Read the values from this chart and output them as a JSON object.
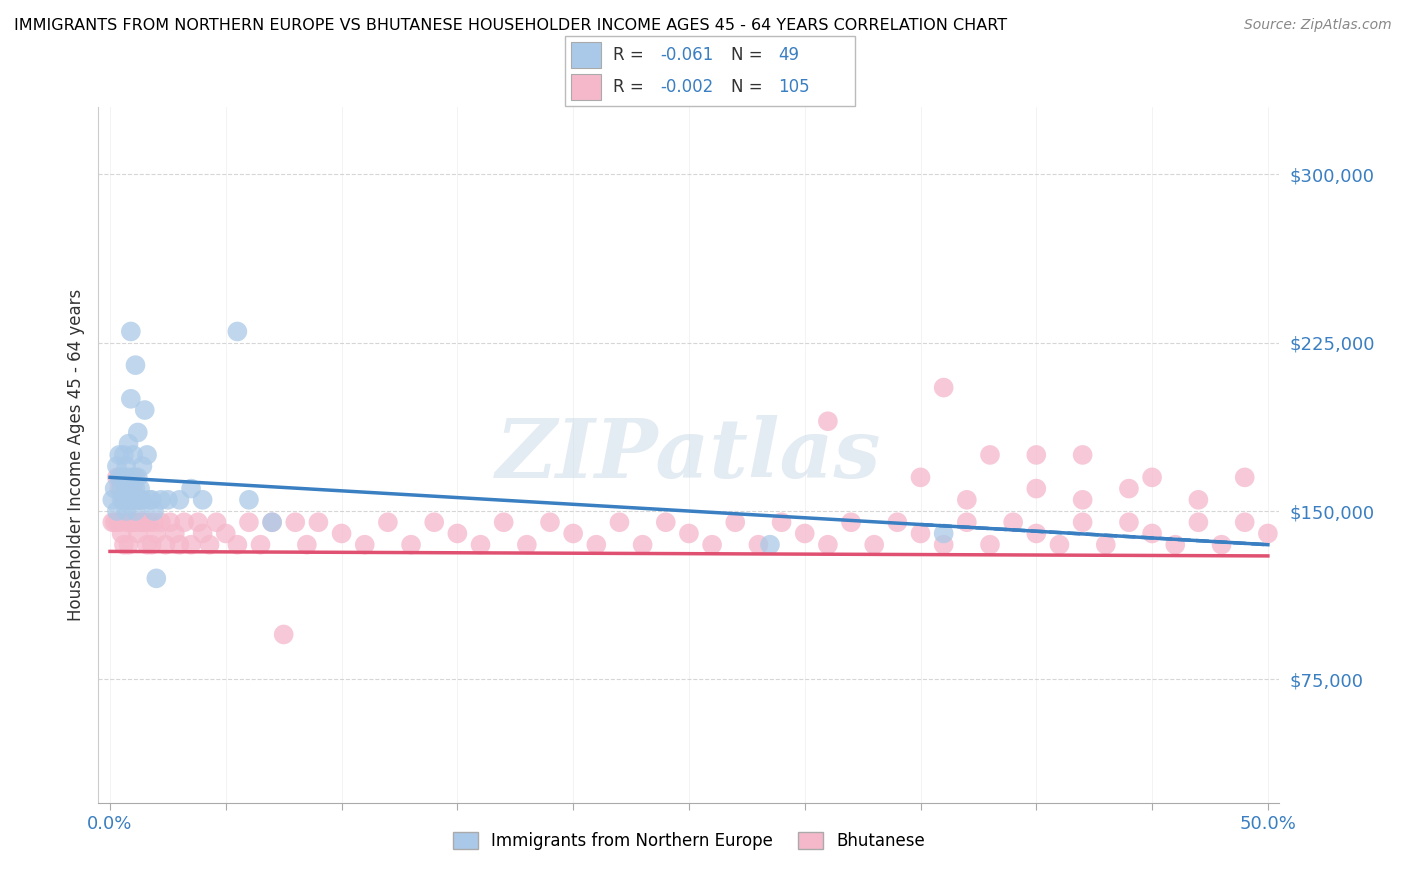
{
  "title": "IMMIGRANTS FROM NORTHERN EUROPE VS BHUTANESE HOUSEHOLDER INCOME AGES 45 - 64 YEARS CORRELATION CHART",
  "source": "Source: ZipAtlas.com",
  "ylabel": "Householder Income Ages 45 - 64 years",
  "xlim": [
    -0.005,
    0.505
  ],
  "ylim": [
    20000,
    330000
  ],
  "yticks": [
    75000,
    150000,
    225000,
    300000
  ],
  "ytick_labels": [
    "$75,000",
    "$150,000",
    "$225,000",
    "$300,000"
  ],
  "legend_labels": [
    "Immigrants from Northern Europe",
    "Bhutanese"
  ],
  "blue_color": "#aac9e8",
  "pink_color": "#f5b8cb",
  "blue_line_color": "#3a7fc1",
  "pink_line_color": "#e05070",
  "watermark": "ZIPatlas",
  "blue_scatter_x": [
    0.001,
    0.002,
    0.003,
    0.003,
    0.004,
    0.004,
    0.005,
    0.005,
    0.006,
    0.006,
    0.006,
    0.007,
    0.007,
    0.007,
    0.008,
    0.008,
    0.008,
    0.009,
    0.009,
    0.009,
    0.01,
    0.01,
    0.01,
    0.011,
    0.011,
    0.011,
    0.012,
    0.012,
    0.012,
    0.013,
    0.013,
    0.014,
    0.014,
    0.015,
    0.016,
    0.017,
    0.018,
    0.019,
    0.02,
    0.022,
    0.025,
    0.03,
    0.035,
    0.04,
    0.055,
    0.06,
    0.07,
    0.285,
    0.36
  ],
  "blue_scatter_y": [
    155000,
    160000,
    170000,
    150000,
    165000,
    175000,
    155000,
    160000,
    155000,
    165000,
    175000,
    150000,
    160000,
    170000,
    155000,
    165000,
    180000,
    160000,
    200000,
    230000,
    155000,
    165000,
    175000,
    150000,
    160000,
    215000,
    155000,
    165000,
    185000,
    155000,
    160000,
    155000,
    170000,
    195000,
    175000,
    155000,
    155000,
    150000,
    120000,
    155000,
    155000,
    155000,
    160000,
    155000,
    230000,
    155000,
    145000,
    135000,
    140000
  ],
  "pink_scatter_x": [
    0.001,
    0.002,
    0.003,
    0.003,
    0.004,
    0.004,
    0.005,
    0.005,
    0.006,
    0.006,
    0.007,
    0.007,
    0.008,
    0.008,
    0.009,
    0.009,
    0.01,
    0.01,
    0.011,
    0.011,
    0.012,
    0.012,
    0.013,
    0.013,
    0.014,
    0.015,
    0.016,
    0.017,
    0.018,
    0.019,
    0.02,
    0.022,
    0.024,
    0.026,
    0.028,
    0.03,
    0.032,
    0.035,
    0.038,
    0.04,
    0.043,
    0.046,
    0.05,
    0.055,
    0.06,
    0.065,
    0.07,
    0.075,
    0.08,
    0.085,
    0.09,
    0.1,
    0.11,
    0.12,
    0.13,
    0.14,
    0.15,
    0.16,
    0.17,
    0.18,
    0.19,
    0.2,
    0.21,
    0.22,
    0.23,
    0.24,
    0.25,
    0.26,
    0.27,
    0.28,
    0.29,
    0.3,
    0.31,
    0.32,
    0.33,
    0.34,
    0.35,
    0.36,
    0.37,
    0.38,
    0.39,
    0.4,
    0.41,
    0.42,
    0.43,
    0.44,
    0.45,
    0.46,
    0.47,
    0.48,
    0.49,
    0.5,
    0.31,
    0.35,
    0.37,
    0.4,
    0.42,
    0.45,
    0.47,
    0.49,
    0.36,
    0.38,
    0.4,
    0.42,
    0.44
  ],
  "pink_scatter_y": [
    145000,
    145000,
    145000,
    165000,
    145000,
    160000,
    140000,
    165000,
    135000,
    155000,
    145000,
    160000,
    135000,
    155000,
    145000,
    160000,
    145000,
    160000,
    145000,
    165000,
    140000,
    155000,
    145000,
    155000,
    145000,
    145000,
    135000,
    145000,
    135000,
    145000,
    140000,
    145000,
    135000,
    145000,
    140000,
    135000,
    145000,
    135000,
    145000,
    140000,
    135000,
    145000,
    140000,
    135000,
    145000,
    135000,
    145000,
    95000,
    145000,
    135000,
    145000,
    140000,
    135000,
    145000,
    135000,
    145000,
    140000,
    135000,
    145000,
    135000,
    145000,
    140000,
    135000,
    145000,
    135000,
    145000,
    140000,
    135000,
    145000,
    135000,
    145000,
    140000,
    135000,
    145000,
    135000,
    145000,
    140000,
    135000,
    145000,
    135000,
    145000,
    140000,
    135000,
    145000,
    135000,
    145000,
    140000,
    135000,
    145000,
    135000,
    145000,
    140000,
    190000,
    165000,
    155000,
    175000,
    155000,
    165000,
    155000,
    165000,
    205000,
    175000,
    160000,
    175000,
    160000
  ]
}
